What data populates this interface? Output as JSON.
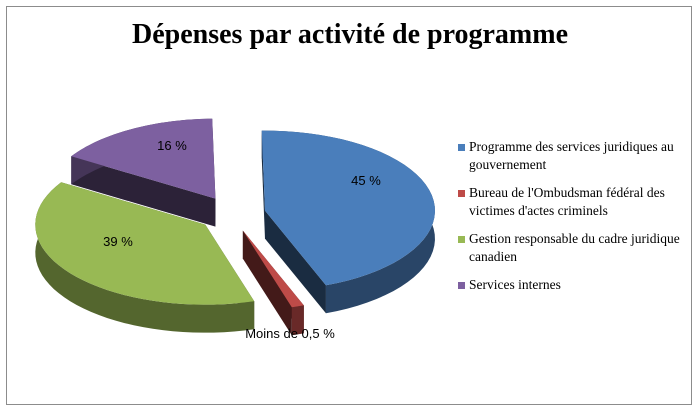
{
  "chart_data": {
    "type": "pie",
    "style": "3d-exploded",
    "title": "Dépenses par activité de programme",
    "slices": [
      {
        "label": "Programme des services juridiques au gouvernement",
        "value": 45,
        "data_label": "45 %",
        "color": "#4a7ebb"
      },
      {
        "label": "Bureau de l'Ombudsman fédéral des victimes d'actes criminels",
        "value": 0.5,
        "data_label": "Moins de 0,5 %",
        "color": "#be4b48"
      },
      {
        "label": "Gestion responsable du cadre juridique canadien",
        "value": 39,
        "data_label": "39 %",
        "color": "#98b954"
      },
      {
        "label": "Services internes",
        "value": 16,
        "data_label": "16 %",
        "color": "#7d60a0"
      }
    ],
    "legend_position": "right"
  }
}
